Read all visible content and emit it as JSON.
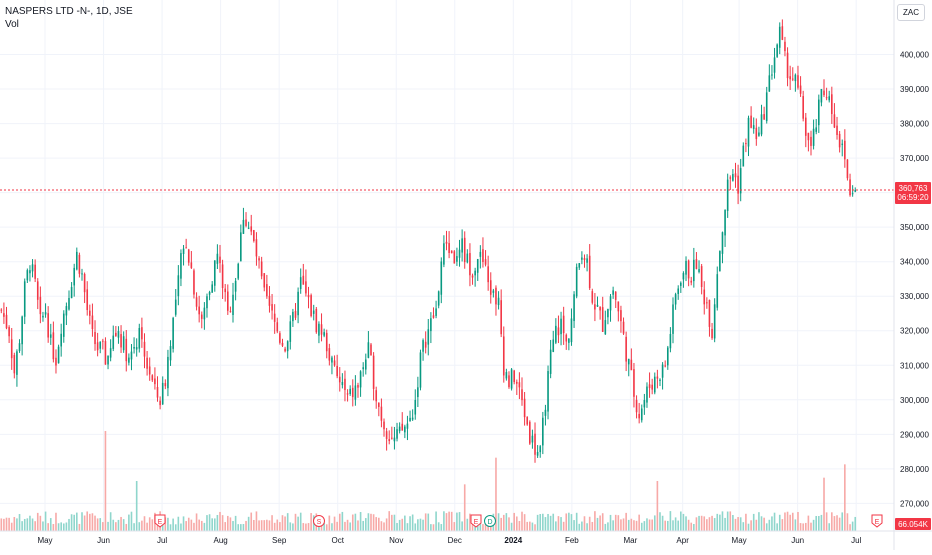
{
  "header": {
    "symbol_line": "NASPERS LTD -N-, 1D, JSE",
    "volume_label": "Vol",
    "currency_label": "ZAC"
  },
  "price_label": {
    "price": "360,763",
    "countdown": "06:59:20",
    "value": 360763,
    "color": "#f23645"
  },
  "volume_label": {
    "text": "66.054K",
    "color": "#f23645"
  },
  "colors": {
    "up": "#089981",
    "down": "#f23645",
    "up_volume": "#8fd6cc",
    "down_volume": "#f7a9a7",
    "grid": "#f0f3fa",
    "axis_text": "#131722"
  },
  "events": [
    {
      "label": "E",
      "type": "earnings",
      "position": "Jun",
      "color": "#f23645"
    },
    {
      "label": "S",
      "type": "split",
      "position": "Sep",
      "color": "#f23645"
    },
    {
      "label": "E",
      "type": "earnings",
      "position": "Nov/Dec",
      "color": "#f23645"
    },
    {
      "label": "D",
      "type": "dividend",
      "position": "Dec",
      "color": "#089981"
    },
    {
      "label": "E",
      "type": "earnings",
      "position": "Jun",
      "color": "#f23645"
    }
  ],
  "chart_data": {
    "type": "candlestick",
    "title": "NASPERS LTD -N-, 1D, JSE",
    "xlabel": "",
    "ylabel": "",
    "y_ticks": [
      "270,000",
      "280,000",
      "290,000",
      "300,000",
      "310,000",
      "320,000",
      "330,000",
      "340,000",
      "350,000",
      "360,000",
      "370,000",
      "380,000",
      "390,000",
      "400,000"
    ],
    "y_tick_values": [
      270000,
      280000,
      290000,
      300000,
      310000,
      320000,
      330000,
      340000,
      350000,
      360000,
      370000,
      380000,
      390000,
      400000
    ],
    "x_ticks": [
      "May",
      "Jun",
      "Jul",
      "Aug",
      "Sep",
      "Oct",
      "Nov",
      "Dec",
      "2024",
      "Feb",
      "Mar",
      "Apr",
      "May",
      "Jun",
      "Jul"
    ],
    "ylim": [
      262000,
      410000
    ],
    "grid": true,
    "close_path": [
      [
        0,
        326000
      ],
      [
        3,
        320000
      ],
      [
        5,
        308000
      ],
      [
        7,
        318000
      ],
      [
        9,
        332000
      ],
      [
        11,
        340000
      ],
      [
        13,
        333000
      ],
      [
        15,
        322000
      ],
      [
        17,
        326000
      ],
      [
        19,
        316000
      ],
      [
        21,
        312000
      ],
      [
        23,
        322000
      ],
      [
        25,
        328000
      ],
      [
        27,
        335000
      ],
      [
        29,
        342000
      ],
      [
        31,
        336000
      ],
      [
        33,
        326000
      ],
      [
        35,
        318000
      ],
      [
        37,
        315000
      ],
      [
        39,
        314000
      ],
      [
        41,
        310000
      ],
      [
        43,
        318000
      ],
      [
        45,
        320000
      ],
      [
        47,
        316000
      ],
      [
        49,
        312000
      ],
      [
        51,
        316000
      ],
      [
        53,
        318000
      ],
      [
        55,
        312000
      ],
      [
        57,
        308000
      ],
      [
        59,
        302000
      ],
      [
        61,
        300000
      ],
      [
        63,
        306000
      ],
      [
        65,
        318000
      ],
      [
        67,
        328000
      ],
      [
        69,
        340000
      ],
      [
        71,
        346000
      ],
      [
        73,
        338000
      ],
      [
        75,
        328000
      ],
      [
        77,
        322000
      ],
      [
        79,
        330000
      ],
      [
        81,
        336000
      ],
      [
        83,
        342000
      ],
      [
        85,
        334000
      ],
      [
        87,
        324000
      ],
      [
        89,
        332000
      ],
      [
        91,
        340000
      ],
      [
        93,
        354000
      ],
      [
        95,
        350000
      ],
      [
        97,
        345000
      ],
      [
        99,
        338000
      ],
      [
        101,
        330000
      ],
      [
        103,
        326000
      ],
      [
        105,
        322000
      ],
      [
        107,
        318000
      ],
      [
        109,
        316000
      ],
      [
        111,
        320000
      ],
      [
        113,
        326000
      ],
      [
        115,
        334000
      ],
      [
        117,
        330000
      ],
      [
        119,
        326000
      ],
      [
        121,
        322000
      ],
      [
        123,
        320000
      ],
      [
        125,
        316000
      ],
      [
        127,
        310000
      ],
      [
        129,
        306000
      ],
      [
        131,
        304000
      ],
      [
        133,
        300000
      ],
      [
        135,
        302000
      ],
      [
        137,
        304000
      ],
      [
        139,
        310000
      ],
      [
        141,
        314000
      ],
      [
        143,
        306000
      ],
      [
        145,
        298000
      ],
      [
        147,
        293000
      ],
      [
        149,
        290000
      ],
      [
        151,
        288000
      ],
      [
        153,
        290000
      ],
      [
        155,
        292000
      ],
      [
        157,
        294000
      ],
      [
        159,
        300000
      ],
      [
        161,
        312000
      ],
      [
        163,
        318000
      ],
      [
        165,
        322000
      ],
      [
        167,
        326000
      ],
      [
        169,
        340000
      ],
      [
        171,
        346000
      ],
      [
        173,
        342000
      ],
      [
        175,
        340000
      ],
      [
        177,
        344000
      ],
      [
        179,
        340000
      ],
      [
        181,
        338000
      ],
      [
        183,
        342000
      ],
      [
        185,
        340000
      ],
      [
        187,
        334000
      ],
      [
        189,
        330000
      ],
      [
        191,
        328000
      ],
      [
        193,
        310000
      ],
      [
        195,
        305000
      ],
      [
        197,
        307000
      ],
      [
        199,
        302000
      ],
      [
        201,
        296000
      ],
      [
        203,
        290000
      ],
      [
        205,
        286000
      ],
      [
        207,
        284000
      ],
      [
        209,
        300000
      ],
      [
        211,
        312000
      ],
      [
        213,
        320000
      ],
      [
        215,
        322000
      ],
      [
        217,
        316000
      ],
      [
        219,
        324000
      ],
      [
        221,
        336000
      ],
      [
        223,
        344000
      ],
      [
        225,
        340000
      ],
      [
        227,
        330000
      ],
      [
        229,
        326000
      ],
      [
        231,
        322000
      ],
      [
        233,
        328000
      ],
      [
        235,
        332000
      ],
      [
        237,
        326000
      ],
      [
        239,
        318000
      ],
      [
        241,
        310000
      ],
      [
        243,
        302000
      ],
      [
        245,
        296000
      ],
      [
        247,
        300000
      ],
      [
        249,
        304000
      ],
      [
        251,
        306000
      ],
      [
        253,
        308000
      ],
      [
        255,
        310000
      ],
      [
        257,
        320000
      ],
      [
        259,
        330000
      ],
      [
        261,
        336000
      ],
      [
        263,
        338000
      ],
      [
        265,
        336000
      ],
      [
        267,
        340000
      ],
      [
        269,
        332000
      ],
      [
        271,
        328000
      ],
      [
        273,
        320000
      ],
      [
        275,
        338000
      ],
      [
        277,
        350000
      ],
      [
        279,
        362000
      ],
      [
        281,
        366000
      ],
      [
        283,
        362000
      ],
      [
        285,
        372000
      ],
      [
        287,
        380000
      ],
      [
        289,
        378000
      ],
      [
        291,
        376000
      ],
      [
        293,
        384000
      ],
      [
        295,
        392000
      ],
      [
        297,
        400000
      ],
      [
        299,
        406000
      ],
      [
        301,
        398000
      ],
      [
        303,
        394000
      ],
      [
        305,
        392000
      ],
      [
        307,
        386000
      ],
      [
        309,
        378000
      ],
      [
        311,
        372000
      ],
      [
        313,
        380000
      ],
      [
        315,
        388000
      ],
      [
        317,
        390000
      ],
      [
        319,
        384000
      ],
      [
        321,
        378000
      ],
      [
        323,
        372000
      ],
      [
        325,
        366000
      ],
      [
        327,
        358000
      ],
      [
        328,
        360763
      ]
    ],
    "price_last": 360763,
    "volume": {
      "last": 66054,
      "spikes_bar_index": [
        40,
        52,
        178,
        190,
        252,
        316,
        324
      ],
      "spike_values": [
        300000,
        150000,
        140000,
        220000,
        150000,
        160000,
        200000
      ]
    },
    "bars": 329,
    "up_color": "#089981",
    "down_color": "#f23645"
  }
}
